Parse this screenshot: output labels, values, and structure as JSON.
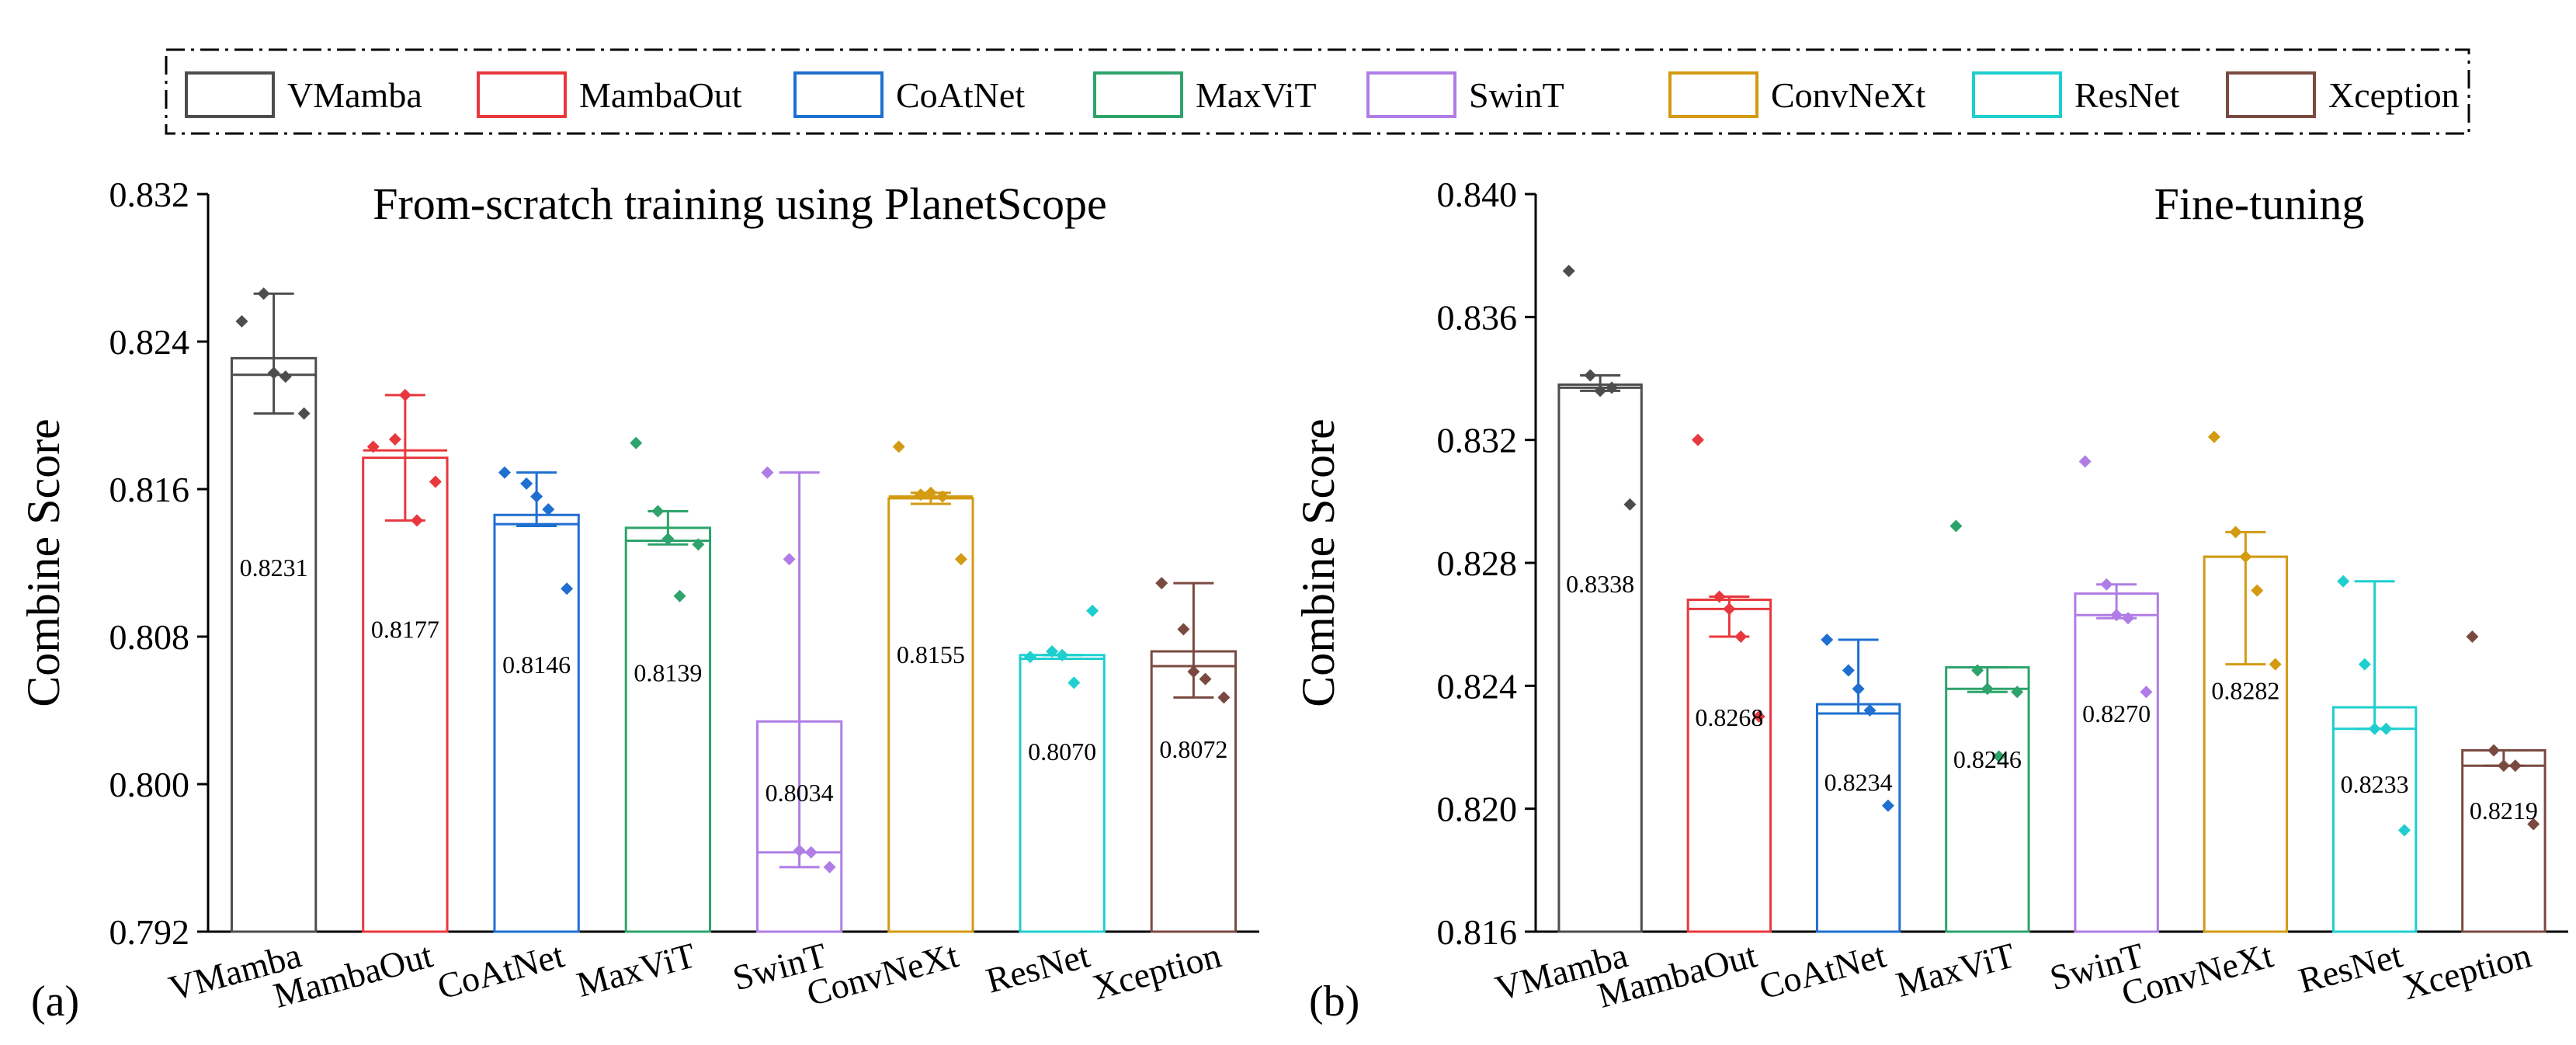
{
  "legend": {
    "items": [
      {
        "name": "VMamba",
        "color": "#4d4d4d"
      },
      {
        "name": "MambaOut",
        "color": "#e8383d"
      },
      {
        "name": "CoAtNet",
        "color": "#1f6fd1"
      },
      {
        "name": "MaxViT",
        "color": "#2ea36b"
      },
      {
        "name": "SwinT",
        "color": "#b07de6"
      },
      {
        "name": "ConvNeXt",
        "color": "#d39a12"
      },
      {
        "name": "ResNet",
        "color": "#1fcfcf"
      },
      {
        "name": "Xception",
        "color": "#7a4a40"
      }
    ]
  },
  "chart_data": [
    {
      "type": "bar",
      "panel_label": "(a)",
      "title": "From-scratch training using PlanetScope",
      "xlabel": "",
      "ylabel": "Combine Score",
      "ylim": [
        0.792,
        0.832
      ],
      "yticks": [
        "0.792",
        "0.800",
        "0.808",
        "0.816",
        "0.824",
        "0.832"
      ],
      "categories": [
        "VMamba",
        "MambaOut",
        "CoAtNet",
        "MaxViT",
        "SwinT",
        "ConvNeXt",
        "ResNet",
        "Xception"
      ],
      "values": [
        0.8231,
        0.8177,
        0.8146,
        0.8139,
        0.8034,
        0.8155,
        0.807,
        0.8072
      ],
      "value_labels": [
        "0.8231",
        "0.8177",
        "0.8146",
        "0.8139",
        "0.8034",
        "0.8155",
        "0.8070",
        "0.8072"
      ],
      "medians": [
        0.8222,
        0.8181,
        0.8141,
        0.8132,
        0.7963,
        0.8156,
        0.8068,
        0.8064
      ],
      "error_low": [
        0.8201,
        0.8143,
        0.814,
        0.813,
        0.7955,
        0.8152,
        0.807,
        0.8047
      ],
      "error_high": [
        0.8266,
        0.8211,
        0.8169,
        0.8148,
        0.8169,
        0.8158,
        0.807,
        0.8109
      ],
      "points": [
        [
          0.8251,
          0.8266,
          0.8223,
          0.8221,
          0.8201
        ],
        [
          0.8183,
          0.8187,
          0.8211,
          0.8143,
          0.8164
        ],
        [
          0.8169,
          0.8163,
          0.8156,
          0.8149,
          0.8106
        ],
        [
          0.8185,
          0.8148,
          0.8133,
          0.8102,
          0.813
        ],
        [
          0.8169,
          0.8122,
          0.7964,
          0.7963,
          0.7955
        ],
        [
          0.8183,
          0.8157,
          0.8158,
          0.8156,
          0.8122
        ],
        [
          0.8069,
          0.8072,
          0.807,
          0.8055,
          0.8094
        ],
        [
          0.8109,
          0.8084,
          0.8061,
          0.8057,
          0.8047
        ]
      ]
    },
    {
      "type": "bar",
      "panel_label": "(b)",
      "title": "Fine-tuning",
      "xlabel": "",
      "ylabel": "Combine Score",
      "ylim": [
        0.816,
        0.84
      ],
      "yticks": [
        "0.816",
        "0.820",
        "0.824",
        "0.828",
        "0.832",
        "0.836",
        "0.840"
      ],
      "categories": [
        "VMamba",
        "MambaOut",
        "CoAtNet",
        "MaxViT",
        "SwinT",
        "ConvNeXt",
        "ResNet",
        "Xception"
      ],
      "values": [
        0.8338,
        0.8268,
        0.8234,
        0.8246,
        0.827,
        0.8282,
        0.8233,
        0.8219
      ],
      "value_labels": [
        "0.8338",
        "0.8268",
        "0.8234",
        "0.8246",
        "0.8270",
        "0.8282",
        "0.8233",
        "0.8219"
      ],
      "medians": [
        0.8337,
        0.8265,
        0.8231,
        0.8239,
        0.8263,
        0.8282,
        0.8226,
        0.8214
      ],
      "error_low": [
        0.8336,
        0.8256,
        0.8231,
        0.8238,
        0.8262,
        0.8247,
        0.8226,
        0.8214
      ],
      "error_high": [
        0.8341,
        0.8269,
        0.8255,
        0.8246,
        0.8273,
        0.829,
        0.8274,
        0.8219
      ],
      "points": [
        [
          0.8375,
          0.8341,
          0.8336,
          0.8337,
          0.8299
        ],
        [
          0.832,
          0.8269,
          0.8265,
          0.8256,
          0.823
        ],
        [
          0.8255,
          0.8245,
          0.8239,
          0.8232,
          0.8201
        ],
        [
          0.8292,
          0.8245,
          0.8239,
          0.8217,
          0.8238
        ],
        [
          0.8313,
          0.8273,
          0.8263,
          0.8262,
          0.8238
        ],
        [
          0.8321,
          0.829,
          0.8282,
          0.8271,
          0.8247
        ],
        [
          0.8274,
          0.8247,
          0.8226,
          0.8226,
          0.8193
        ],
        [
          0.8256,
          0.8219,
          0.8214,
          0.8214,
          0.8195
        ]
      ]
    }
  ]
}
